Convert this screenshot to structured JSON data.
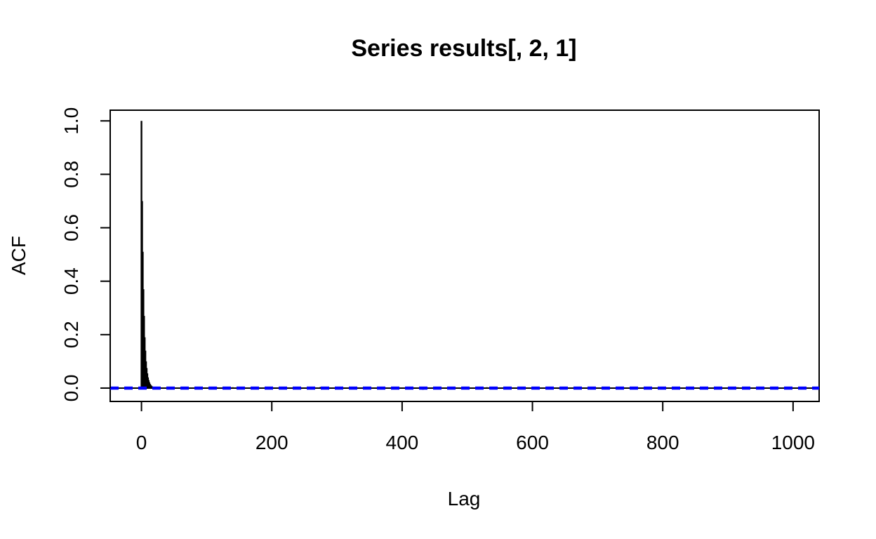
{
  "chart_data": {
    "type": "bar",
    "title": "Series  results[, 2, 1]",
    "xlabel": "Lag",
    "ylabel": "ACF",
    "xlim": [
      -48,
      1040
    ],
    "ylim": [
      -0.05,
      1.04
    ],
    "x_ticks": [
      0,
      200,
      400,
      600,
      800,
      1000
    ],
    "x_tick_labels": [
      "0",
      "200",
      "400",
      "600",
      "800",
      "1000"
    ],
    "y_ticks": [
      0.0,
      0.2,
      0.4,
      0.6,
      0.8,
      1.0
    ],
    "y_tick_labels": [
      "0.0",
      "0.2",
      "0.4",
      "0.6",
      "0.8",
      "1.0"
    ],
    "grid": false,
    "confidence_band": 0.002,
    "confidence_band_color": "#0000ff",
    "zero_line_color": "#000000",
    "bar_color": "#000000",
    "decay_lags": [
      0,
      1,
      2,
      3,
      4,
      5,
      6,
      7,
      8,
      9,
      10,
      11,
      12,
      13,
      14,
      15,
      16,
      17,
      18,
      19,
      20
    ],
    "decay_values": [
      1.0,
      0.7,
      0.51,
      0.37,
      0.27,
      0.19,
      0.14,
      0.1,
      0.075,
      0.055,
      0.04,
      0.03,
      0.022,
      0.016,
      0.012,
      0.009,
      0.007,
      0.005,
      0.004,
      0.003,
      0.002
    ],
    "tail_lags": [
      115,
      140,
      160,
      195,
      215,
      245,
      275,
      330,
      380,
      432,
      490,
      530,
      580,
      640,
      700,
      760,
      810,
      858,
      915,
      955,
      1000
    ],
    "tail_values": [
      0.003,
      0.003,
      -0.002,
      0.004,
      0.003,
      -0.003,
      0.004,
      -0.002,
      0.002,
      -0.006,
      -0.003,
      0.003,
      -0.002,
      -0.003,
      0.002,
      -0.002,
      0.002,
      -0.005,
      0.003,
      -0.003,
      0.002
    ]
  }
}
